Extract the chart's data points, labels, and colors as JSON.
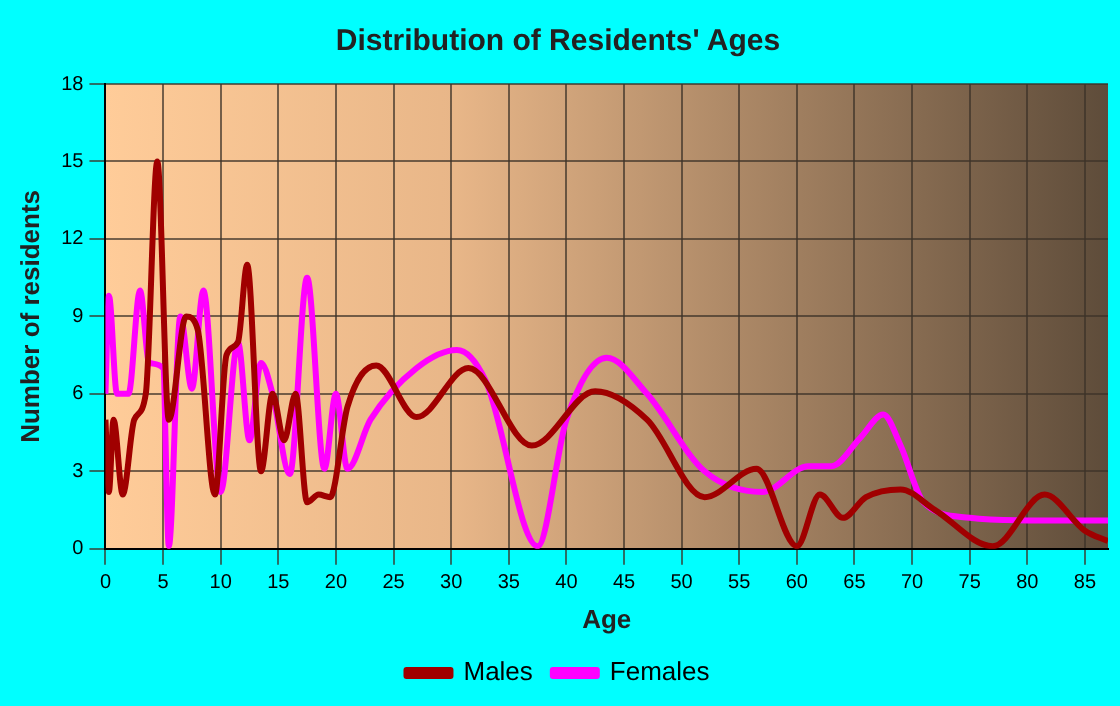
{
  "chart_data": {
    "type": "line",
    "title": "Distribution of Residents' Ages",
    "xlabel": "Age",
    "ylabel": "Number of residents",
    "xlim": [
      0,
      87
    ],
    "xticks": [
      0,
      5,
      10,
      15,
      20,
      25,
      30,
      35,
      40,
      45,
      50,
      55,
      60,
      65,
      70,
      75,
      80,
      85
    ],
    "ylim": [
      0,
      18
    ],
    "yticks": [
      0,
      3,
      6,
      9,
      12,
      15,
      18
    ],
    "grid": true,
    "legend": "bottom",
    "marker": "none",
    "line_style": "solid",
    "series": [
      {
        "name": "Males",
        "color": "#a00000",
        "x": [
          0,
          0.3,
          0.7,
          1.5,
          2.5,
          3.5,
          4.5,
          5.5,
          7,
          8,
          9.5,
          10.5,
          11.5,
          12.3,
          13.5,
          14.5,
          15.5,
          16.5,
          17.5,
          18.5,
          19.5,
          21,
          23.5,
          27,
          31.5,
          37,
          42.5,
          47,
          52,
          56.5,
          60,
          62,
          64,
          66,
          69,
          72,
          77,
          81.5,
          85,
          87
        ],
        "values": [
          5,
          2.2,
          5,
          2.1,
          5,
          6,
          15,
          5,
          9,
          8.5,
          2.1,
          7.5,
          8,
          11,
          3,
          6,
          4.2,
          6,
          1.8,
          2.1,
          2,
          5.5,
          7.1,
          5.1,
          7,
          4,
          6.1,
          5,
          2,
          3.1,
          0.1,
          2.1,
          1.2,
          2,
          2.3,
          1.5,
          0.1,
          2.1,
          0.7,
          0.3
        ]
      },
      {
        "name": "Females",
        "color": "#ff00ff",
        "x": [
          0,
          0.3,
          1,
          2,
          3,
          3.8,
          5,
          5.5,
          6.5,
          7.5,
          8.5,
          10,
          11.5,
          12.5,
          13.5,
          14.5,
          16,
          17.5,
          19,
          20,
          21,
          23,
          27,
          30.5,
          33,
          37.5,
          40,
          43.5,
          47,
          52,
          57,
          61,
          63,
          65.5,
          67.5,
          69,
          71,
          75,
          80,
          87
        ],
        "values": [
          6,
          9.8,
          6,
          6,
          10,
          7.2,
          7,
          0.1,
          9,
          6.2,
          10,
          2.2,
          8,
          4.2,
          7.2,
          6,
          2.9,
          10.5,
          3.1,
          6,
          3.1,
          5,
          7,
          7.7,
          6.5,
          0.1,
          5,
          7.4,
          6,
          3,
          2.2,
          3.2,
          3.2,
          4.3,
          5.2,
          4,
          1.8,
          1.2,
          1.1,
          1.1
        ]
      }
    ]
  }
}
